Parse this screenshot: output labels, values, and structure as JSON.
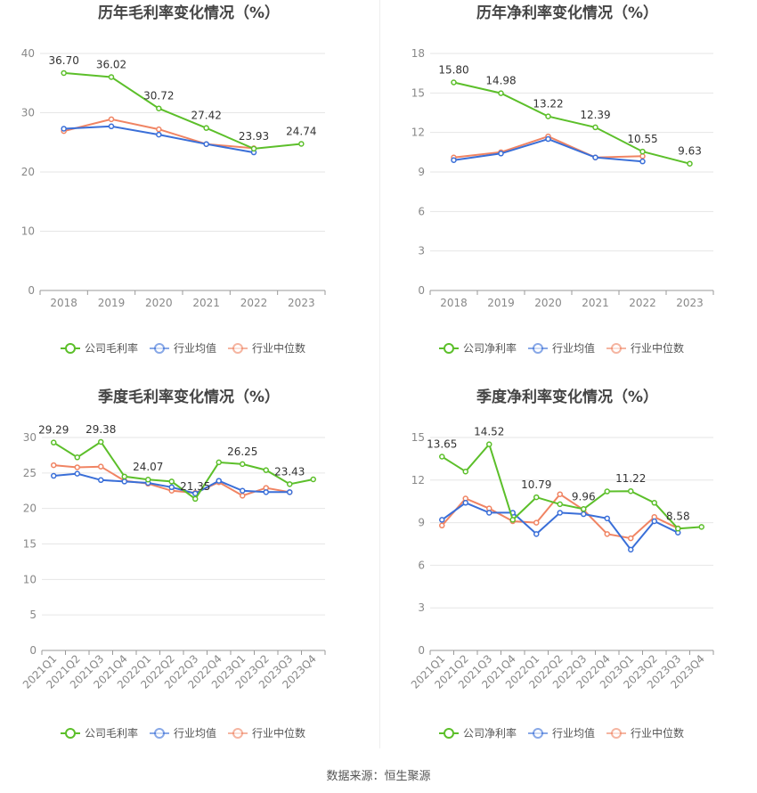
{
  "source": "数据来源：恒生聚源",
  "colors": {
    "company": "#5cbf2a",
    "avg": "#3a6fd8",
    "median": "#f08463",
    "grid": "#e6e6e6",
    "axis": "#999999"
  },
  "chart_data": [
    {
      "type": "line",
      "title": "历年毛利率变化情况（%）",
      "categories": [
        "2018",
        "2019",
        "2020",
        "2021",
        "2022",
        "2023"
      ],
      "yticks": [
        0,
        10,
        20,
        30,
        40
      ],
      "ylim": [
        0,
        40
      ],
      "series": [
        {
          "name": "公司毛利率",
          "key": "company",
          "values": [
            36.7,
            36.02,
            30.72,
            27.42,
            23.93,
            24.74
          ],
          "labels": [
            "36.70",
            "36.02",
            "30.72",
            "27.42",
            "23.93",
            "24.74"
          ]
        },
        {
          "name": "行业均值",
          "key": "avg",
          "values": [
            27.3,
            27.7,
            26.3,
            24.7,
            23.3,
            null
          ]
        },
        {
          "name": "行业中位数",
          "key": "median",
          "values": [
            26.9,
            28.9,
            27.2,
            24.7,
            24.0,
            null
          ]
        }
      ],
      "legend_position": "bottom"
    },
    {
      "type": "line",
      "title": "历年净利率变化情况（%）",
      "categories": [
        "2018",
        "2019",
        "2020",
        "2021",
        "2022",
        "2023"
      ],
      "yticks": [
        0,
        3,
        6,
        9,
        12,
        15,
        18
      ],
      "ylim": [
        0,
        18
      ],
      "series": [
        {
          "name": "公司净利率",
          "key": "company",
          "values": [
            15.8,
            14.98,
            13.22,
            12.39,
            10.55,
            9.63
          ],
          "labels": [
            "15.80",
            "14.98",
            "13.22",
            "12.39",
            "10.55",
            "9.63"
          ]
        },
        {
          "name": "行业均值",
          "key": "avg",
          "values": [
            9.9,
            10.4,
            11.5,
            10.1,
            9.8,
            null
          ]
        },
        {
          "name": "行业中位数",
          "key": "median",
          "values": [
            10.1,
            10.5,
            11.7,
            10.1,
            10.2,
            null
          ]
        }
      ],
      "legend_position": "bottom"
    },
    {
      "type": "line",
      "title": "季度毛利率变化情况（%）",
      "categories": [
        "2021Q1",
        "2021Q2",
        "2021Q3",
        "2021Q4",
        "2022Q1",
        "2022Q2",
        "2022Q3",
        "2022Q4",
        "2023Q1",
        "2023Q2",
        "2023Q3",
        "2023Q4"
      ],
      "yticks": [
        0,
        5,
        10,
        15,
        20,
        25,
        30
      ],
      "ylim": [
        0,
        30
      ],
      "series": [
        {
          "name": "公司毛利率",
          "key": "company",
          "values": [
            29.29,
            27.2,
            29.38,
            24.5,
            24.07,
            23.8,
            21.35,
            26.5,
            26.25,
            25.4,
            23.43,
            24.1
          ],
          "labels": [
            "29.29",
            "",
            "29.38",
            "",
            "24.07",
            "",
            "21.35",
            "",
            "26.25",
            "",
            "23.43",
            ""
          ]
        },
        {
          "name": "行业均值",
          "key": "avg",
          "values": [
            24.6,
            24.9,
            24.0,
            23.8,
            23.6,
            23.0,
            22.1,
            23.9,
            22.5,
            22.3,
            22.3,
            null
          ]
        },
        {
          "name": "行业中位数",
          "key": "median",
          "values": [
            26.1,
            25.8,
            25.9,
            23.9,
            23.5,
            22.5,
            22.2,
            23.7,
            21.8,
            22.9,
            22.3,
            null
          ]
        }
      ],
      "legend_position": "bottom"
    },
    {
      "type": "line",
      "title": "季度净利率变化情况（%）",
      "categories": [
        "2021Q1",
        "2021Q2",
        "2021Q3",
        "2021Q4",
        "2022Q1",
        "2022Q2",
        "2022Q3",
        "2022Q4",
        "2023Q1",
        "2023Q2",
        "2023Q3",
        "2023Q4"
      ],
      "yticks": [
        0,
        3,
        6,
        9,
        12,
        15
      ],
      "ylim": [
        0,
        15
      ],
      "series": [
        {
          "name": "公司净利率",
          "key": "company",
          "values": [
            13.65,
            12.6,
            14.52,
            9.2,
            10.79,
            10.3,
            9.96,
            11.2,
            11.22,
            10.4,
            8.58,
            8.7
          ],
          "labels": [
            "13.65",
            "",
            "14.52",
            "",
            "10.79",
            "",
            "9.96",
            "",
            "11.22",
            "",
            "8.58",
            ""
          ]
        },
        {
          "name": "行业均值",
          "key": "avg",
          "values": [
            9.2,
            10.4,
            9.7,
            9.7,
            8.2,
            9.7,
            9.6,
            9.3,
            7.1,
            9.1,
            8.3,
            null
          ]
        },
        {
          "name": "行业中位数",
          "key": "median",
          "values": [
            8.8,
            10.7,
            10.0,
            9.1,
            9.0,
            11.0,
            9.9,
            8.2,
            7.9,
            9.4,
            8.6,
            null
          ]
        }
      ],
      "legend_position": "bottom"
    }
  ]
}
